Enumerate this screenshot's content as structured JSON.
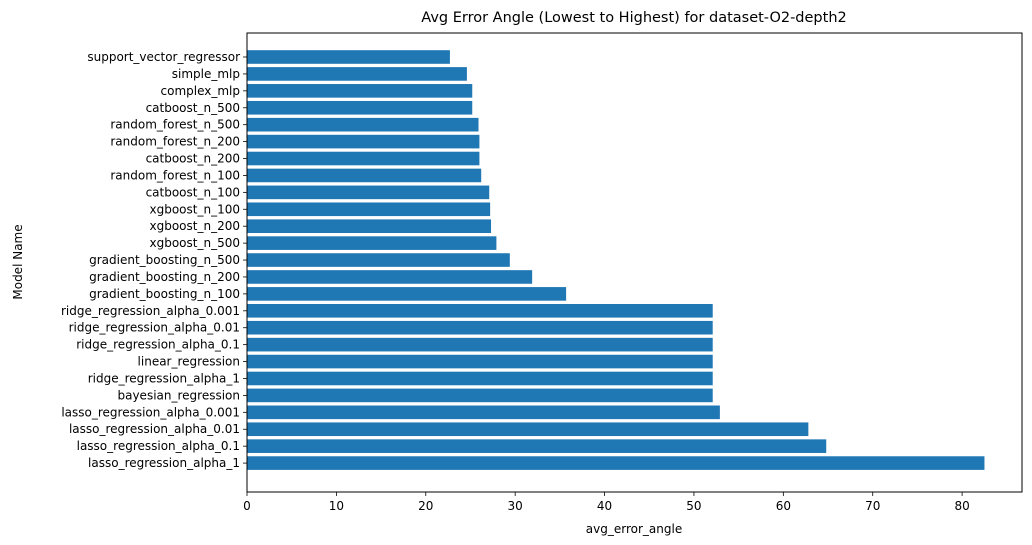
{
  "chart_data": {
    "type": "bar",
    "orientation": "horizontal",
    "title": "Avg Error Angle (Lowest to Highest) for dataset-O2-depth2",
    "xlabel": "avg_error_angle",
    "ylabel": "Model Name",
    "xlim": [
      0,
      86.7
    ],
    "xticks": [
      0,
      10,
      20,
      30,
      40,
      50,
      60,
      70,
      80
    ],
    "grid": false,
    "bar_color": "#1f77b4",
    "categories": [
      "support_vector_regressor",
      "simple_mlp",
      "complex_mlp",
      "catboost_n_500",
      "random_forest_n_500",
      "random_forest_n_200",
      "catboost_n_200",
      "random_forest_n_100",
      "catboost_n_100",
      "xgboost_n_100",
      "xgboost_n_200",
      "xgboost_n_500",
      "gradient_boosting_n_500",
      "gradient_boosting_n_200",
      "gradient_boosting_n_100",
      "ridge_regression_alpha_0.001",
      "ridge_regression_alpha_0.01",
      "ridge_regression_alpha_0.1",
      "linear_regression",
      "ridge_regression_alpha_1",
      "bayesian_regression",
      "lasso_regression_alpha_0.001",
      "lasso_regression_alpha_0.01",
      "lasso_regression_alpha_0.1",
      "lasso_regression_alpha_1"
    ],
    "values": [
      22.7,
      24.6,
      25.2,
      25.2,
      25.9,
      26.0,
      26.0,
      26.2,
      27.1,
      27.2,
      27.3,
      27.9,
      29.4,
      31.9,
      35.7,
      52.1,
      52.1,
      52.1,
      52.1,
      52.1,
      52.1,
      52.9,
      62.8,
      64.8,
      82.5
    ]
  }
}
